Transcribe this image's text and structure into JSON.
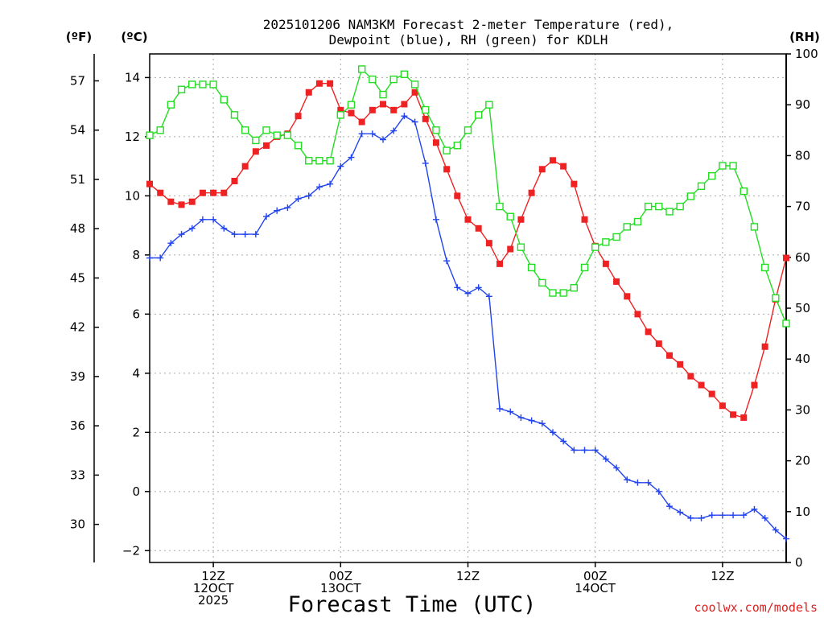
{
  "chart_data": {
    "type": "line",
    "title": {
      "line1": "2025101206 NAM3KM Forecast 2-meter Temperature (red),",
      "line2": "Dewpoint (blue), RH (green) for KDLH"
    },
    "xlabel": "Forecast Time (UTC)",
    "credit": "coolwx.com/models",
    "x_units": "hours since 2025-10-12 06Z",
    "xlim": [
      0,
      60
    ],
    "x_ticks": [
      {
        "x": 6,
        "line1": "12Z",
        "line2": "12OCT",
        "line3": "2025"
      },
      {
        "x": 18,
        "line1": "00Z",
        "line2": "13OCT",
        "line3": ""
      },
      {
        "x": 30,
        "line1": "12Z",
        "line2": "",
        "line3": ""
      },
      {
        "x": 42,
        "line1": "00Z",
        "line2": "14OCT",
        "line3": ""
      },
      {
        "x": 54,
        "line1": "12Z",
        "line2": "",
        "line3": ""
      }
    ],
    "y_left_celsius": {
      "label": "(ºC)",
      "lim": [
        -2.4,
        14.8
      ],
      "ticks": [
        -2,
        0,
        2,
        4,
        6,
        8,
        10,
        12,
        14
      ]
    },
    "y_left_fahrenheit": {
      "label": "(ºF)",
      "ticks": [
        30,
        33,
        36,
        39,
        42,
        45,
        48,
        51,
        54,
        57
      ]
    },
    "y_right_rh": {
      "label": "(RH)",
      "lim": [
        0,
        100
      ],
      "ticks": [
        0,
        10,
        20,
        30,
        40,
        50,
        60,
        70,
        80,
        90,
        100
      ]
    },
    "x": [
      0,
      1,
      2,
      3,
      4,
      5,
      6,
      7,
      8,
      9,
      10,
      11,
      12,
      13,
      14,
      15,
      16,
      17,
      18,
      19,
      20,
      21,
      22,
      23,
      24,
      25,
      26,
      27,
      28,
      29,
      30,
      31,
      32,
      33,
      34,
      35,
      36,
      37,
      38,
      39,
      40,
      41,
      42,
      43,
      44,
      45,
      46,
      47,
      48,
      49,
      50,
      51,
      52,
      53,
      54,
      55,
      56,
      57,
      58,
      59,
      60
    ],
    "series": [
      {
        "name": "Temperature",
        "color": "#ee2222",
        "axis": "celsius",
        "marker": "filled-square",
        "values": [
          10.4,
          10.1,
          9.8,
          9.7,
          9.8,
          10.1,
          10.1,
          10.1,
          10.5,
          11.0,
          11.5,
          11.7,
          12.0,
          12.1,
          12.7,
          13.5,
          13.8,
          13.8,
          12.9,
          12.8,
          12.5,
          12.9,
          13.1,
          12.9,
          13.1,
          13.5,
          12.6,
          11.8,
          10.9,
          10.0,
          9.2,
          8.9,
          8.4,
          7.7,
          8.2,
          9.2,
          10.1,
          10.9,
          11.2,
          11.0,
          10.4,
          9.2,
          8.3,
          7.7,
          7.1,
          6.6,
          6.0,
          5.4,
          5.0,
          4.6,
          4.3,
          3.9,
          3.6,
          3.3,
          2.9,
          2.6,
          2.5,
          3.6,
          4.9,
          6.5,
          7.9
        ]
      },
      {
        "name": "Dewpoint",
        "color": "#2244ee",
        "axis": "celsius",
        "marker": "plus",
        "values": [
          7.9,
          7.9,
          8.4,
          8.7,
          8.9,
          9.2,
          9.2,
          8.9,
          8.7,
          8.7,
          8.7,
          9.3,
          9.5,
          9.6,
          9.9,
          10.0,
          10.3,
          10.4,
          11.0,
          11.3,
          12.1,
          12.1,
          11.9,
          12.2,
          12.7,
          12.5,
          11.1,
          9.2,
          7.8,
          6.9,
          6.7,
          6.9,
          6.6,
          2.8,
          2.7,
          2.5,
          2.4,
          2.3,
          2.0,
          1.7,
          1.4,
          1.4,
          1.4,
          1.1,
          0.8,
          0.4,
          0.3,
          0.3,
          0.0,
          -0.5,
          -0.7,
          -0.9,
          -0.9,
          -0.8,
          -0.8,
          -0.8,
          -0.8,
          -0.6,
          -0.9,
          -1.3,
          -1.6
        ]
      },
      {
        "name": "RH",
        "color": "#22dd22",
        "axis": "rh",
        "marker": "open-square",
        "values": [
          84,
          85,
          90,
          93,
          94,
          94,
          94,
          91,
          88,
          85,
          83,
          85,
          84,
          84,
          82,
          79,
          79,
          79,
          88,
          90,
          97,
          95,
          92,
          95,
          96,
          94,
          89,
          85,
          81,
          82,
          85,
          88,
          90,
          70,
          68,
          62,
          58,
          55,
          53,
          53,
          54,
          58,
          62,
          63,
          64,
          66,
          67,
          70,
          70,
          69,
          70,
          72,
          74,
          76,
          78,
          78,
          73,
          66,
          58,
          52,
          47
        ]
      }
    ]
  }
}
